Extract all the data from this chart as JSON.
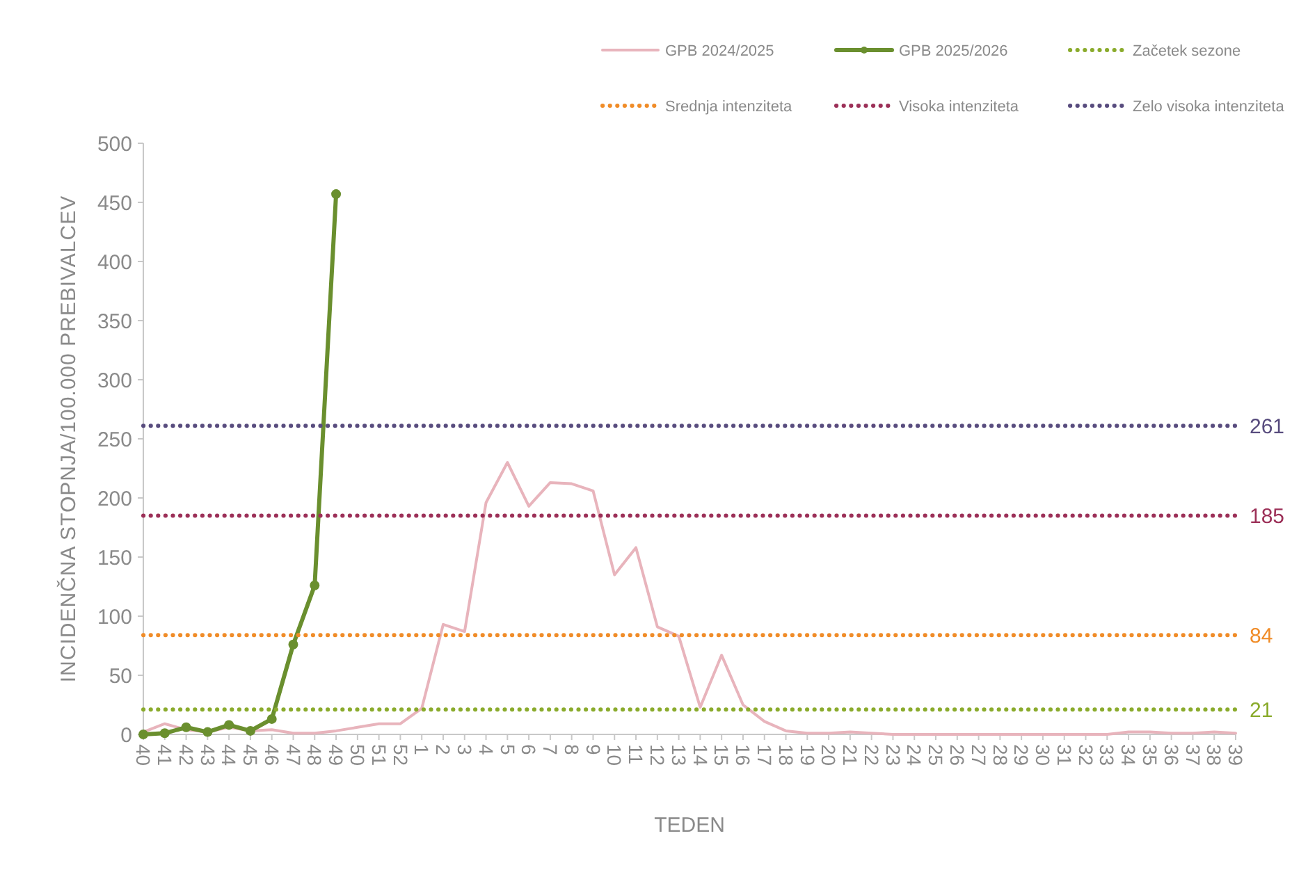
{
  "chart_data": {
    "type": "line",
    "xlabel": "TEDEN",
    "ylabel": "INCIDENČNA STOPNJA/100.000 PREBIVALCEV",
    "categories": [
      "40",
      "41",
      "42",
      "43",
      "44",
      "45",
      "46",
      "47",
      "48",
      "49",
      "50",
      "51",
      "52",
      "1",
      "2",
      "3",
      "4",
      "5",
      "6",
      "7",
      "8",
      "9",
      "10",
      "11",
      "12",
      "13",
      "14",
      "15",
      "16",
      "17",
      "18",
      "19",
      "20",
      "21",
      "22",
      "23",
      "24",
      "25",
      "26",
      "27",
      "28",
      "29",
      "30",
      "31",
      "32",
      "33",
      "34",
      "35",
      "36",
      "37",
      "38",
      "39"
    ],
    "series": [
      {
        "name": "GPB 2024/2025",
        "color": "#e8b4bc",
        "marker": "none",
        "values": [
          2,
          9,
          4,
          2,
          6,
          3,
          4,
          1,
          1,
          3,
          6,
          9,
          9,
          22,
          93,
          87,
          196,
          230,
          193,
          213,
          212,
          206,
          135,
          158,
          91,
          83,
          23,
          67,
          25,
          11,
          3,
          1,
          1,
          2,
          1,
          0,
          0,
          0,
          0,
          0,
          0,
          0,
          0,
          0,
          0,
          0,
          2,
          2,
          1,
          1,
          2,
          1
        ]
      },
      {
        "name": "GPB 2025/2026",
        "color": "#6a8f2e",
        "marker": "circle",
        "values": [
          0,
          1,
          6,
          2,
          8,
          3,
          13,
          76,
          126,
          457,
          null,
          null,
          null,
          null,
          null,
          null,
          null,
          null,
          null,
          null,
          null,
          null,
          null,
          null,
          null,
          null,
          null,
          null,
          null,
          null,
          null,
          null,
          null,
          null,
          null,
          null,
          null,
          null,
          null,
          null,
          null,
          null,
          null,
          null,
          null,
          null,
          null,
          null,
          null,
          null,
          null,
          null
        ]
      },
      {
        "name": "Začetek sezone",
        "color": "#8aab2c",
        "marker": "none",
        "line_style": "dotted",
        "values": [
          21,
          21,
          21,
          21,
          21,
          21,
          21,
          21,
          21,
          21,
          21,
          21,
          21,
          21,
          21,
          21,
          21,
          21,
          21,
          21,
          21,
          21,
          21,
          21,
          21,
          21,
          21,
          21,
          21,
          21,
          21,
          21,
          21,
          21,
          21,
          21,
          21,
          21,
          21,
          21,
          21,
          21,
          21,
          21,
          21,
          21,
          21,
          21,
          21,
          21,
          21,
          21
        ],
        "value_labels": [
          null,
          null,
          null,
          null,
          null,
          null,
          null,
          null,
          null,
          null,
          null,
          null,
          null,
          null,
          null,
          null,
          null,
          null,
          null,
          null,
          null,
          null,
          null,
          null,
          null,
          null,
          null,
          null,
          null,
          null,
          null,
          null,
          null,
          null,
          null,
          null,
          null,
          null,
          null,
          null,
          null,
          null,
          null,
          null,
          null,
          null,
          null,
          null,
          null,
          null,
          null,
          "21"
        ]
      },
      {
        "name": "Srednja intenziteta",
        "color": "#f08c28",
        "marker": "none",
        "line_style": "dotted",
        "values": [
          84,
          84,
          84,
          84,
          84,
          84,
          84,
          84,
          84,
          84,
          84,
          84,
          84,
          84,
          84,
          84,
          84,
          84,
          84,
          84,
          84,
          84,
          84,
          84,
          84,
          84,
          84,
          84,
          84,
          84,
          84,
          84,
          84,
          84,
          84,
          84,
          84,
          84,
          84,
          84,
          84,
          84,
          84,
          84,
          84,
          84,
          84,
          84,
          84,
          84,
          84,
          84
        ],
        "value_labels": [
          null,
          null,
          null,
          null,
          null,
          null,
          null,
          null,
          null,
          null,
          null,
          null,
          null,
          null,
          null,
          null,
          null,
          null,
          null,
          null,
          null,
          null,
          null,
          null,
          null,
          null,
          null,
          null,
          null,
          null,
          null,
          null,
          null,
          null,
          null,
          null,
          null,
          null,
          null,
          null,
          null,
          null,
          null,
          null,
          null,
          null,
          null,
          null,
          null,
          null,
          null,
          "84"
        ]
      },
      {
        "name": "Visoka intenziteta",
        "color": "#9c3058",
        "marker": "none",
        "line_style": "dotted",
        "values": [
          185,
          185,
          185,
          185,
          185,
          185,
          185,
          185,
          185,
          185,
          185,
          185,
          185,
          185,
          185,
          185,
          185,
          185,
          185,
          185,
          185,
          185,
          185,
          185,
          185,
          185,
          185,
          185,
          185,
          185,
          185,
          185,
          185,
          185,
          185,
          185,
          185,
          185,
          185,
          185,
          185,
          185,
          185,
          185,
          185,
          185,
          185,
          185,
          185,
          185,
          185,
          185
        ],
        "value_labels": [
          null,
          null,
          null,
          null,
          null,
          null,
          null,
          null,
          null,
          null,
          null,
          null,
          null,
          null,
          null,
          null,
          null,
          null,
          null,
          null,
          null,
          null,
          null,
          null,
          null,
          null,
          null,
          null,
          null,
          null,
          null,
          null,
          null,
          null,
          null,
          null,
          null,
          null,
          null,
          null,
          null,
          null,
          null,
          null,
          null,
          null,
          null,
          null,
          null,
          null,
          null,
          "185"
        ]
      },
      {
        "name": "Zelo visoka intenziteta",
        "color": "#584c7e",
        "marker": "none",
        "line_style": "dotted",
        "values": [
          261,
          261,
          261,
          261,
          261,
          261,
          261,
          261,
          261,
          261,
          261,
          261,
          261,
          261,
          261,
          261,
          261,
          261,
          261,
          261,
          261,
          261,
          261,
          261,
          261,
          261,
          261,
          261,
          261,
          261,
          261,
          261,
          261,
          261,
          261,
          261,
          261,
          261,
          261,
          261,
          261,
          261,
          261,
          261,
          261,
          261,
          261,
          261,
          261,
          261,
          261,
          261
        ],
        "value_labels": [
          null,
          null,
          null,
          null,
          null,
          null,
          null,
          null,
          null,
          null,
          null,
          null,
          null,
          null,
          null,
          null,
          null,
          null,
          null,
          null,
          null,
          null,
          null,
          null,
          null,
          null,
          null,
          null,
          null,
          null,
          null,
          null,
          null,
          null,
          null,
          null,
          null,
          null,
          null,
          null,
          null,
          null,
          null,
          null,
          null,
          null,
          null,
          null,
          null,
          null,
          null,
          "261"
        ]
      }
    ],
    "ylim": [
      0,
      500
    ],
    "yticks": [
      0,
      50,
      100,
      150,
      200,
      250,
      300,
      350,
      400,
      450,
      500
    ],
    "grid": false,
    "legend": "top right"
  }
}
